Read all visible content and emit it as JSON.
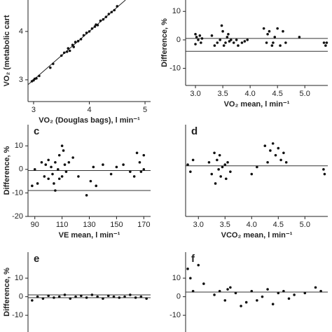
{
  "chart_data": [
    {
      "type": "scatter",
      "x_label": "VO₂ (Douglas bags), l min⁻¹",
      "y_label": "VO₂ (metabolic cart",
      "x": [
        2.97,
        3.0,
        3.02,
        3.05,
        3.1,
        3.3,
        3.35,
        3.5,
        3.55,
        3.6,
        3.62,
        3.65,
        3.7,
        3.72,
        3.75,
        3.8,
        3.85,
        3.9,
        3.95,
        4.0,
        4.05,
        4.1,
        4.12,
        4.15,
        4.2,
        4.25,
        4.3,
        4.35,
        4.4,
        4.45,
        4.5
      ],
      "values": [
        2.97,
        2.99,
        3.02,
        3.03,
        3.08,
        3.25,
        3.33,
        3.5,
        3.56,
        3.58,
        3.65,
        3.6,
        3.72,
        3.68,
        3.78,
        3.8,
        3.84,
        3.92,
        3.97,
        4.0,
        4.06,
        4.1,
        4.14,
        4.13,
        4.22,
        4.25,
        4.3,
        4.36,
        4.4,
        4.44,
        4.52
      ],
      "xlim": [
        2.9,
        5.1
      ],
      "xticks": [
        3,
        4,
        5
      ],
      "ylim": [
        2.55,
        4.65
      ],
      "yticks": [
        3,
        4
      ],
      "identity_line": true
    },
    {
      "type": "scatter",
      "x_label": "VO₂ mean, l min⁻¹",
      "y_label": "Difference, %",
      "x": [
        3.0,
        3.02,
        3.05,
        3.08,
        3.1,
        3.12,
        3.0,
        3.3,
        3.35,
        3.4,
        3.45,
        3.48,
        3.5,
        3.52,
        3.55,
        3.58,
        3.6,
        3.62,
        3.65,
        3.7,
        3.75,
        3.78,
        3.85,
        3.9,
        3.95,
        4.25,
        4.3,
        4.32,
        4.35,
        4.4,
        4.42,
        4.45,
        4.5,
        4.55,
        4.6,
        4.65,
        4.9,
        5.35,
        5.38,
        5.4
      ],
      "values": [
        2,
        1,
        0,
        1.5,
        -1,
        0.5,
        -1.5,
        1.5,
        -2,
        -1,
        0,
        5,
        3,
        -2,
        -1,
        1,
        2,
        -0.5,
        0,
        -1,
        0,
        -2,
        -1,
        -0.5,
        0,
        4,
        -1,
        2,
        3,
        -2,
        -1,
        1,
        4,
        -2,
        3,
        -1,
        1,
        -1,
        -2,
        -1
      ],
      "xlim": [
        2.82,
        5.42
      ],
      "xticks": [
        {
          "value": 3,
          "label": "3.0"
        },
        {
          "value": 3.5,
          "label": "3.5"
        },
        {
          "value": 4,
          "label": "4.0"
        },
        {
          "value": 4.5,
          "label": "4.5"
        },
        {
          "value": 5,
          "label": "5.0"
        }
      ],
      "ylim": [
        -16,
        14
      ],
      "yticks": [
        -10,
        0,
        10
      ],
      "hlines": [
        0.5,
        -4
      ]
    },
    {
      "type": "scatter",
      "panel_label": "c",
      "x_label": "VE mean, l min⁻¹",
      "y_label": "Difference, %",
      "x": [
        88,
        90,
        92,
        95,
        97,
        98,
        100,
        100,
        102,
        103,
        104,
        105,
        105,
        107,
        108,
        108,
        110,
        110,
        111,
        112,
        113,
        115,
        118,
        122,
        128,
        131,
        133,
        135,
        140,
        146,
        150,
        155,
        160,
        163,
        165,
        167,
        168,
        170,
        170
      ],
      "values": [
        -7,
        0,
        -6,
        3,
        -3,
        2,
        -4,
        4,
        1,
        -2,
        -6,
        3,
        -9,
        0,
        6,
        -4,
        10,
        -3,
        8,
        2,
        -1,
        3,
        5,
        -3,
        -11,
        -5,
        1,
        -7,
        2,
        -2,
        1,
        2,
        -1,
        -3,
        7,
        3,
        -1,
        0,
        6
      ],
      "xlim": [
        85,
        175
      ],
      "xticks": [
        90,
        110,
        130,
        150,
        170
      ],
      "ylim": [
        -20,
        19
      ],
      "yticks": [
        -20,
        -10,
        0,
        10
      ],
      "hlines": [
        -0.5,
        -9
      ]
    },
    {
      "type": "scatter",
      "panel_label": "d",
      "x_label": "VCO₂ mean, l min⁻¹",
      "x": [
        2.8,
        2.85,
        2.9,
        3.2,
        3.25,
        3.3,
        3.32,
        3.35,
        3.38,
        3.4,
        3.42,
        3.45,
        3.5,
        3.52,
        3.55,
        3.6,
        4.0,
        4.1,
        4.25,
        4.3,
        4.35,
        4.4,
        4.45,
        4.5,
        4.55,
        4.6,
        4.65,
        5.35,
        5.37
      ],
      "values": [
        2,
        -1,
        4,
        3,
        -2,
        7,
        -6,
        4,
        0,
        6,
        -3,
        1,
        2,
        -4,
        3,
        -1,
        -2,
        1,
        10,
        3,
        8,
        11,
        6,
        9,
        4,
        7,
        3,
        0,
        -2
      ],
      "xlim": [
        2.76,
        5.43
      ],
      "xticks": [
        {
          "value": 3,
          "label": "3.0"
        },
        {
          "value": 3.5,
          "label": "3.5"
        },
        {
          "value": 4,
          "label": "4.0"
        },
        {
          "value": 4.5,
          "label": "4.5"
        },
        {
          "value": 5,
          "label": "5.0"
        }
      ],
      "ylim": [
        -20,
        19
      ],
      "hlines": [
        1.5
      ]
    },
    {
      "type": "scatter",
      "panel_label": "e",
      "y_label": "Difference, %",
      "x": [
        88,
        92,
        96,
        100,
        104,
        108,
        112,
        116,
        120,
        124,
        128,
        132,
        136,
        140,
        144,
        148,
        152,
        156,
        160,
        164,
        168,
        172
      ],
      "values": [
        -2,
        0,
        -1,
        0.5,
        -0.5,
        0,
        1,
        -1,
        0,
        0.5,
        -0.5,
        1,
        0,
        -1,
        0.5,
        0,
        -0.5,
        0,
        1,
        -0.5,
        0,
        -1
      ],
      "xlim": [
        85,
        175
      ],
      "ylim": [
        -19,
        24
      ],
      "yticks": [
        -10,
        0,
        10
      ],
      "hlines": [
        1,
        -0.5
      ]
    },
    {
      "type": "scatter",
      "panel_label": "f",
      "x": [
        2.8,
        2.85,
        2.9,
        3.0,
        3.1,
        3.3,
        3.4,
        3.5,
        3.55,
        3.6,
        3.7,
        3.8,
        3.9,
        4.0,
        4.1,
        4.2,
        4.3,
        4.4,
        4.5,
        4.6,
        4.7,
        4.8,
        5.0,
        5.2,
        5.3
      ],
      "values": [
        15,
        10,
        3,
        17,
        7,
        1,
        3,
        -2,
        4,
        5,
        2,
        -5,
        -3,
        3,
        -2,
        0,
        4,
        -4,
        2,
        3,
        -1,
        1,
        2,
        5,
        3
      ],
      "xlim": [
        2.76,
        5.43
      ],
      "ylim": [
        -19,
        24
      ],
      "yticks": [
        -10,
        0,
        10
      ],
      "hlines": [
        2.5
      ]
    }
  ]
}
